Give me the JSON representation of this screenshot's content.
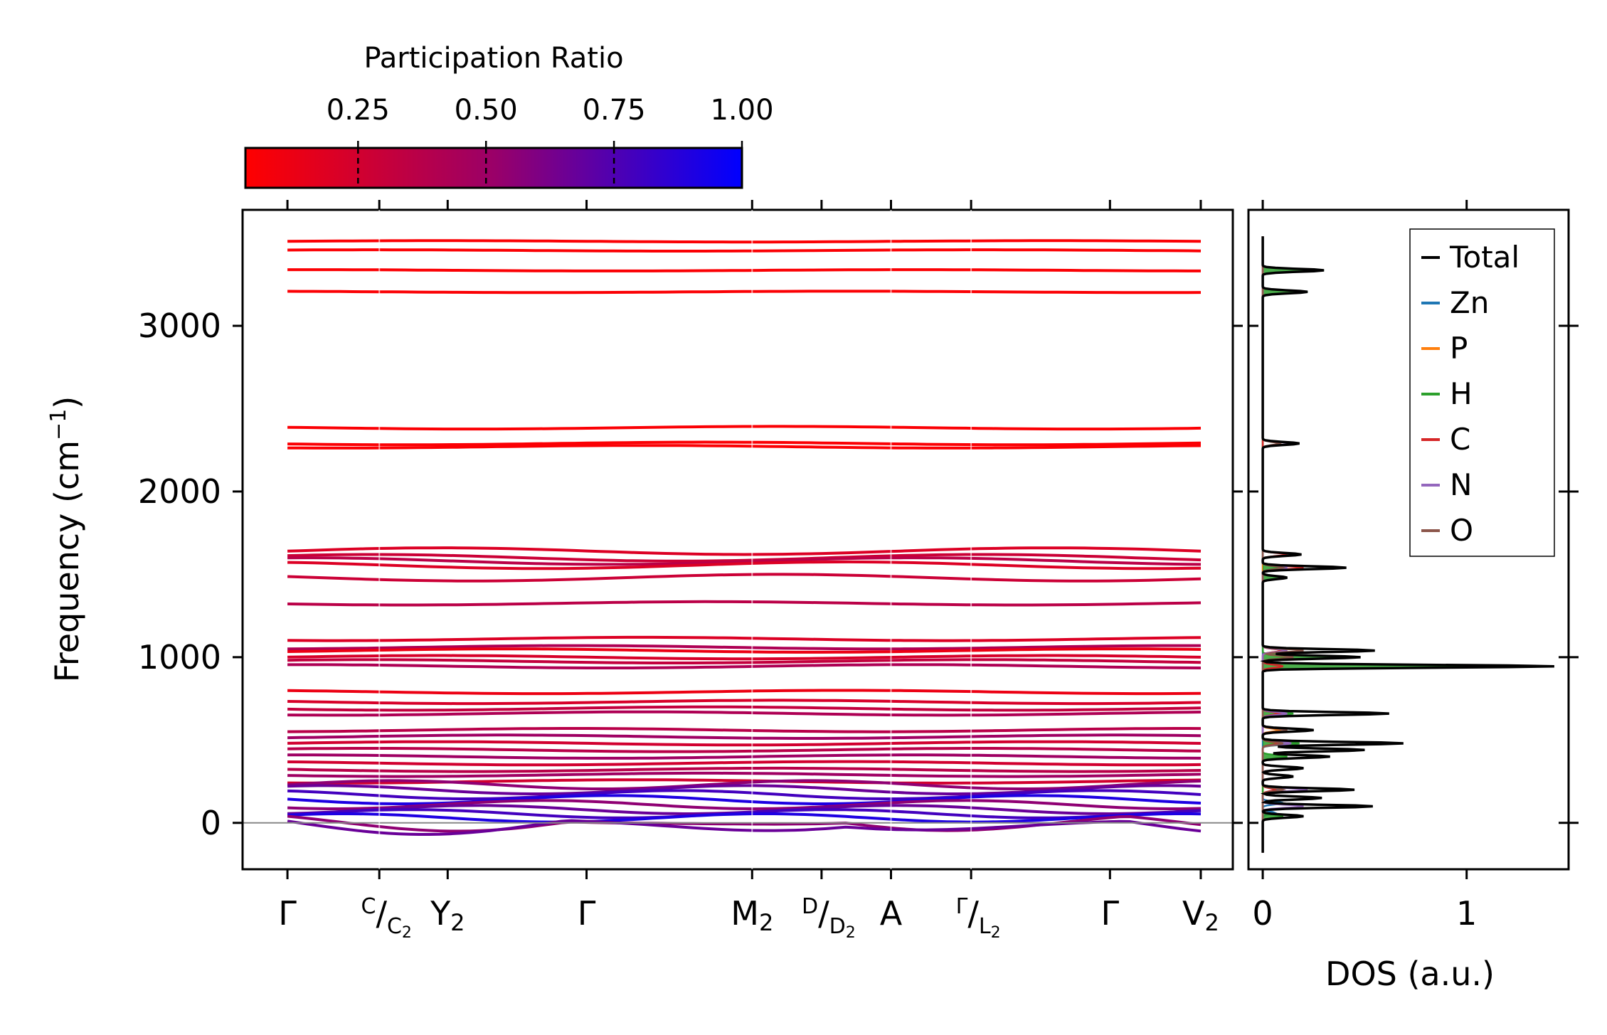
{
  "chart_data": [
    {
      "type": "line",
      "subtype": "phonon-band-structure",
      "ylabel": "Frequency (cm⁻¹)",
      "ylabel_base": "Frequency (cm",
      "ylabel_sup": "−1",
      "ylabel_close": ")",
      "ylim": [
        -280,
        3700
      ],
      "yticks": [
        0,
        1000,
        2000,
        3000
      ],
      "ytick_labels": [
        "0",
        "1000",
        "2000",
        "3000"
      ],
      "kpath_points": [
        {
          "pos": 0.0,
          "label": "Γ",
          "style": "plain"
        },
        {
          "pos": 0.86,
          "label": "C/C₂",
          "style": "split",
          "sup": "C",
          "main": "C",
          "sub": "2"
        },
        {
          "pos": 1.5,
          "label": "Y₂",
          "style": "subscript",
          "main": "Y",
          "sub": "2"
        },
        {
          "pos": 2.8,
          "label": "Γ",
          "style": "plain"
        },
        {
          "pos": 4.35,
          "label": "M₂",
          "style": "subscript",
          "main": "M",
          "sub": "2"
        },
        {
          "pos": 5.0,
          "label": "D/D₂",
          "style": "split",
          "sup": "D",
          "main": "D",
          "sub": "2"
        },
        {
          "pos": 5.65,
          "label": "A",
          "style": "plain"
        },
        {
          "pos": 6.4,
          "label": "Γ/L₂",
          "style": "split",
          "sup": "Γ",
          "main": "L",
          "sub": "2"
        },
        {
          "pos": 7.7,
          "label": "Γ",
          "style": "plain"
        },
        {
          "pos": 8.55,
          "label": "V₂",
          "style": "subscript",
          "main": "V",
          "sub": "2"
        }
      ],
      "segment_breaks": [
        0.86,
        4.35,
        5.65,
        6.4
      ],
      "x_range": [
        -0.42,
        8.85
      ],
      "zero_line_value": 0,
      "high_frequency_bands": [
        3510,
        3455,
        3335,
        3205,
        2385,
        2290,
        2270
      ],
      "mid_frequency_bands": [
        1640,
        1600,
        1580,
        1555,
        1480,
        1325,
        1110,
        1060,
        1040,
        1000,
        975,
        945,
        790,
        730,
        690,
        660,
        560,
        520,
        480,
        440,
        400,
        360,
        320,
        290,
        250
      ],
      "low_frequency_bands": [
        230,
        200,
        170,
        140,
        110,
        80,
        55,
        30,
        15,
        0
      ],
      "colorbar": {
        "title": "Participation Ratio",
        "ticks": [
          0.25,
          0.5,
          0.75,
          1.0
        ],
        "tick_labels": [
          "0.25",
          "0.50",
          "0.75",
          "1.00"
        ],
        "range": [
          0.03,
          1.0
        ],
        "color_low": "#ff0000",
        "color_mid": "#9a0068",
        "color_high": "#0000ff"
      }
    },
    {
      "type": "line",
      "subtype": "density-of-states",
      "xlabel": "DOS (a.u.)",
      "xlim": [
        -0.07,
        1.5
      ],
      "xticks": [
        0,
        1
      ],
      "xtick_labels": [
        "0",
        "1"
      ],
      "ylim": [
        -280,
        3700
      ],
      "legend_position": "top-right",
      "series": [
        {
          "name": "Total",
          "color": "#000000",
          "peaks": [
            [
              3335,
              0.3
            ],
            [
              3205,
              0.22
            ],
            [
              2290,
              0.18
            ],
            [
              1620,
              0.19
            ],
            [
              1540,
              0.41
            ],
            [
              1480,
              0.12
            ],
            [
              1040,
              0.55
            ],
            [
              1000,
              0.48
            ],
            [
              945,
              1.43
            ],
            [
              660,
              0.62
            ],
            [
              560,
              0.25
            ],
            [
              480,
              0.69
            ],
            [
              440,
              0.5
            ],
            [
              400,
              0.33
            ],
            [
              330,
              0.2
            ],
            [
              280,
              0.15
            ],
            [
              200,
              0.45
            ],
            [
              150,
              0.29
            ],
            [
              100,
              0.54
            ],
            [
              40,
              0.2
            ]
          ]
        },
        {
          "name": "Zn",
          "color": "#1f77b4",
          "peaks": [
            [
              200,
              0.08
            ],
            [
              120,
              0.1
            ],
            [
              60,
              0.06
            ]
          ]
        },
        {
          "name": "P",
          "color": "#ff7f0e",
          "peaks": [
            [
              1040,
              0.1
            ],
            [
              1000,
              0.12
            ],
            [
              560,
              0.08
            ],
            [
              480,
              0.06
            ]
          ]
        },
        {
          "name": "H",
          "color": "#2ca02c",
          "peaks": [
            [
              3335,
              0.3
            ],
            [
              3205,
              0.22
            ],
            [
              1540,
              0.08
            ],
            [
              1480,
              0.1
            ],
            [
              1000,
              0.42
            ],
            [
              945,
              1.12
            ],
            [
              660,
              0.15
            ],
            [
              480,
              0.18
            ],
            [
              400,
              0.12
            ],
            [
              40,
              0.1
            ]
          ]
        },
        {
          "name": "C",
          "color": "#d62728",
          "peaks": [
            [
              1620,
              0.12
            ],
            [
              1540,
              0.2
            ],
            [
              1040,
              0.1
            ],
            [
              945,
              0.1
            ],
            [
              660,
              0.08
            ],
            [
              480,
              0.08
            ],
            [
              200,
              0.06
            ]
          ]
        },
        {
          "name": "N",
          "color": "#9467bd",
          "peaks": [
            [
              2290,
              0.14
            ],
            [
              1540,
              0.12
            ],
            [
              1040,
              0.12
            ],
            [
              660,
              0.12
            ],
            [
              480,
              0.14
            ],
            [
              200,
              0.22
            ],
            [
              100,
              0.2
            ]
          ]
        },
        {
          "name": "O",
          "color": "#8c564b",
          "peaks": [
            [
              2290,
              0.08
            ],
            [
              1540,
              0.1
            ],
            [
              1040,
              0.2
            ],
            [
              1000,
              0.15
            ],
            [
              560,
              0.12
            ],
            [
              480,
              0.1
            ],
            [
              200,
              0.1
            ]
          ]
        }
      ]
    }
  ]
}
